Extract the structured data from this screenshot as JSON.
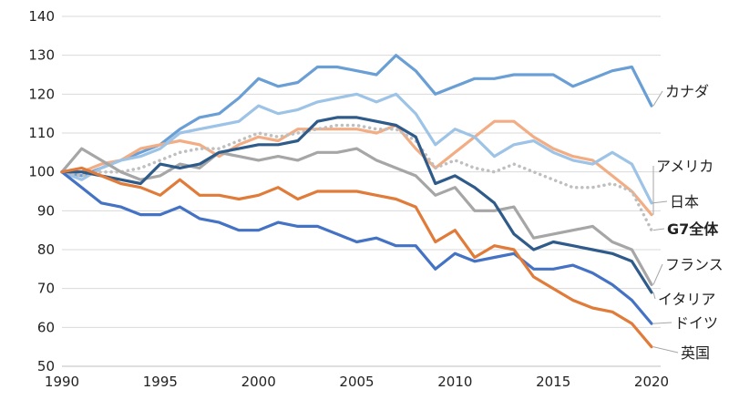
{
  "chart_data": {
    "type": "line",
    "title": "",
    "xlabel": "",
    "ylabel": "",
    "xlim": [
      1990,
      2020
    ],
    "ylim": [
      50,
      140
    ],
    "x_ticks": [
      1990,
      1995,
      2000,
      2005,
      2010,
      2015,
      2020
    ],
    "y_ticks": [
      50,
      60,
      70,
      80,
      90,
      100,
      110,
      120,
      130,
      140
    ],
    "grid": "horizontal",
    "legend": "inline-right",
    "x": [
      1990,
      1991,
      1992,
      1993,
      1994,
      1995,
      1996,
      1997,
      1998,
      1999,
      2000,
      2001,
      2002,
      2003,
      2004,
      2005,
      2006,
      2007,
      2008,
      2009,
      2010,
      2011,
      2012,
      2013,
      2014,
      2015,
      2016,
      2017,
      2018,
      2019,
      2020
    ],
    "series": [
      {
        "name": "カナダ",
        "color": "#6a9fd6",
        "dash": "solid",
        "bold": false,
        "values": [
          100,
          99,
          101,
          103,
          105,
          107,
          111,
          114,
          115,
          119,
          124,
          122,
          123,
          127,
          127,
          126,
          125,
          130,
          126,
          120,
          122,
          124,
          124,
          125,
          125,
          125,
          122,
          124,
          126,
          127,
          117
        ]
      },
      {
        "name": "アメリカ",
        "color": "#f2ad84",
        "dash": "solid",
        "bold": false,
        "values": [
          100,
          100,
          102,
          103,
          106,
          107,
          108,
          107,
          104,
          107,
          109,
          108,
          111,
          111,
          111,
          111,
          110,
          112,
          106,
          101,
          105,
          109,
          113,
          113,
          109,
          106,
          104,
          103,
          99,
          95,
          89
        ]
      },
      {
        "name": "日本",
        "color": "#9dc3e6",
        "dash": "solid",
        "bold": false,
        "values": [
          100,
          98,
          101,
          103,
          104,
          106,
          110,
          111,
          112,
          113,
          117,
          115,
          116,
          118,
          119,
          120,
          118,
          120,
          115,
          107,
          111,
          109,
          104,
          107,
          108,
          105,
          103,
          102,
          105,
          102,
          92
        ]
      },
      {
        "name": "G7全体",
        "color": "#bfbfbf",
        "dash": "dotted",
        "bold": true,
        "values": [
          100,
          99,
          100,
          100,
          101,
          103,
          105,
          106,
          106,
          108,
          110,
          109,
          110,
          111,
          112,
          112,
          111,
          111,
          108,
          101,
          103,
          101,
          100,
          102,
          100,
          98,
          96,
          96,
          97,
          95,
          85
        ]
      },
      {
        "name": "フランス",
        "color": "#a6a6a6",
        "dash": "solid",
        "bold": false,
        "values": [
          100,
          106,
          103,
          100,
          98,
          99,
          102,
          101,
          105,
          104,
          103,
          104,
          103,
          105,
          105,
          106,
          103,
          101,
          99,
          94,
          96,
          90,
          90,
          91,
          83,
          84,
          85,
          86,
          82,
          80,
          71
        ]
      },
      {
        "name": "イタリア",
        "color": "#2e5b8a",
        "dash": "solid",
        "bold": false,
        "values": [
          100,
          100,
          99,
          98,
          97,
          102,
          101,
          102,
          105,
          106,
          107,
          107,
          108,
          113,
          114,
          114,
          113,
          112,
          109,
          97,
          99,
          96,
          92,
          84,
          80,
          82,
          81,
          80,
          79,
          77,
          69
        ]
      },
      {
        "name": "ドイツ",
        "color": "#4472c4",
        "dash": "solid",
        "bold": false,
        "values": [
          100,
          96,
          92,
          91,
          89,
          89,
          91,
          88,
          87,
          85,
          85,
          87,
          86,
          86,
          84,
          82,
          83,
          81,
          81,
          75,
          79,
          77,
          78,
          79,
          75,
          75,
          76,
          74,
          71,
          67,
          61
        ]
      },
      {
        "name": "英国",
        "color": "#e07b39",
        "dash": "solid",
        "bold": false,
        "values": [
          100,
          101,
          99,
          97,
          96,
          94,
          98,
          94,
          94,
          93,
          94,
          96,
          93,
          95,
          95,
          95,
          94,
          93,
          91,
          82,
          85,
          78,
          81,
          80,
          73,
          70,
          67,
          65,
          64,
          61,
          55
        ]
      }
    ],
    "labels": [
      {
        "text": "カナダ",
        "series": "カナダ"
      },
      {
        "text": "アメリカ",
        "series": "アメリカ"
      },
      {
        "text": "日本",
        "series": "日本"
      },
      {
        "text": "G7全体",
        "series": "G7全体"
      },
      {
        "text": "フランス",
        "series": "フランス"
      },
      {
        "text": "イタリア",
        "series": "イタリア"
      },
      {
        "text": "ドイツ",
        "series": "ドイツ"
      },
      {
        "text": "英国",
        "series": "英国"
      }
    ]
  }
}
